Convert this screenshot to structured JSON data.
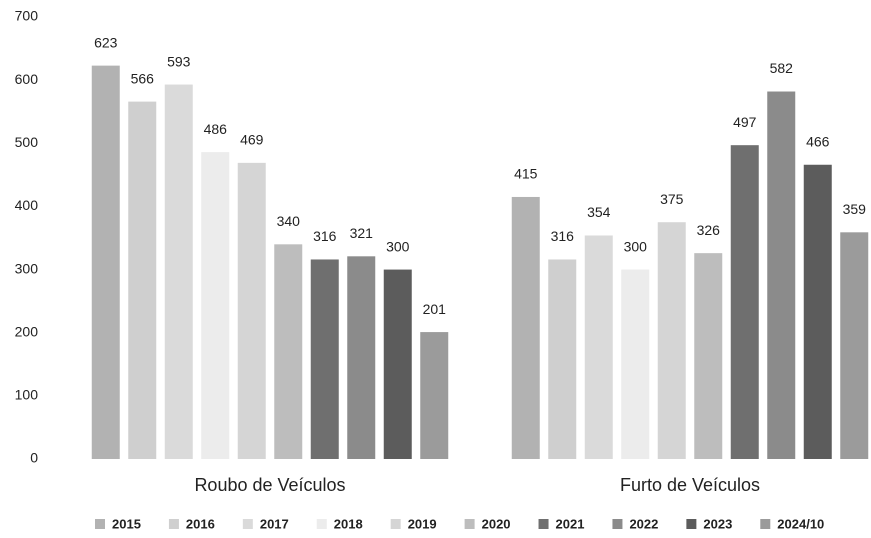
{
  "chart_data": {
    "type": "bar",
    "categories": [
      "Roubo de Veículos",
      "Furto de Veículos"
    ],
    "series": [
      {
        "name": "2015",
        "color": "#b2b2b2",
        "values": [
          623,
          415
        ]
      },
      {
        "name": "2016",
        "color": "#cfcfcf",
        "values": [
          566,
          316
        ]
      },
      {
        "name": "2017",
        "color": "#dadada",
        "values": [
          593,
          354
        ]
      },
      {
        "name": "2018",
        "color": "#ececec",
        "values": [
          486,
          300
        ]
      },
      {
        "name": "2019",
        "color": "#d5d5d5",
        "values": [
          469,
          375
        ]
      },
      {
        "name": "2020",
        "color": "#bdbdbd",
        "values": [
          340,
          326
        ]
      },
      {
        "name": "2021",
        "color": "#6f6f6f",
        "values": [
          316,
          497
        ]
      },
      {
        "name": "2022",
        "color": "#8b8b8b",
        "values": [
          321,
          582
        ]
      },
      {
        "name": "2023",
        "color": "#5c5c5c",
        "values": [
          300,
          466
        ]
      },
      {
        "name": "2024/10",
        "color": "#9b9b9b",
        "values": [
          201,
          359
        ]
      }
    ],
    "ylim": [
      0,
      700
    ],
    "yticks": [
      0,
      100,
      200,
      300,
      400,
      500,
      600,
      700
    ],
    "grid": false,
    "legend": "bottom"
  }
}
